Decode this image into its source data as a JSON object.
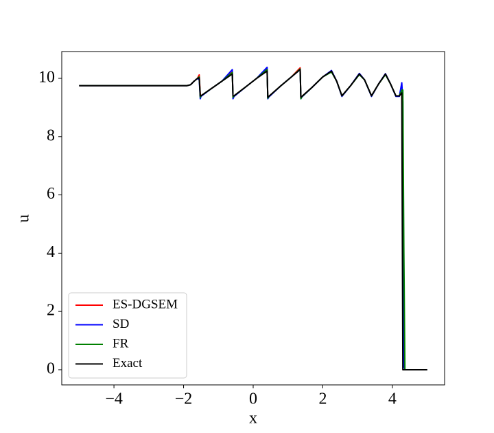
{
  "chart_data": {
    "type": "line",
    "xlabel": "x",
    "ylabel": "u",
    "x": [
      -5,
      -1.9,
      -1.8,
      -1.7,
      -1.6,
      -1.55,
      -1.52,
      -1.5,
      -1.2,
      -0.9,
      -0.6,
      -0.58,
      -0.55,
      -0.2,
      0.1,
      0.4,
      0.42,
      0.45,
      0.8,
      1.1,
      1.35,
      1.37,
      1.4,
      1.7,
      2.0,
      2.25,
      2.4,
      2.55,
      2.8,
      3.05,
      3.2,
      3.4,
      3.6,
      3.8,
      3.95,
      4.1,
      4.2,
      4.27,
      4.3,
      4.33,
      4.36,
      5
    ],
    "series": [
      {
        "name": "ES-DGSEM",
        "color": "#ff0000",
        "values": [
          9.75,
          9.75,
          9.78,
          9.9,
          10.0,
          10.12,
          9.45,
          9.4,
          9.65,
          9.9,
          10.22,
          9.38,
          9.4,
          9.72,
          10.0,
          10.32,
          9.33,
          9.38,
          9.75,
          10.05,
          10.36,
          9.32,
          9.38,
          9.7,
          10.05,
          10.25,
          9.9,
          9.4,
          9.75,
          10.15,
          9.95,
          9.4,
          9.8,
          10.15,
          9.8,
          9.4,
          9.4,
          9.55,
          7.8,
          0.3,
          0,
          0
        ]
      },
      {
        "name": "SD",
        "color": "#0000ff",
        "values": [
          9.75,
          9.75,
          9.78,
          9.9,
          10.0,
          9.95,
          9.3,
          9.38,
          9.65,
          9.9,
          10.3,
          9.3,
          9.38,
          9.72,
          10.0,
          10.38,
          9.3,
          9.36,
          9.75,
          10.05,
          10.3,
          9.3,
          9.36,
          9.7,
          10.05,
          10.27,
          9.9,
          9.38,
          9.75,
          10.17,
          9.95,
          9.38,
          9.8,
          10.16,
          9.8,
          9.38,
          9.38,
          9.85,
          9.2,
          0.1,
          0,
          0
        ]
      },
      {
        "name": "FR",
        "color": "#008000",
        "values": [
          9.75,
          9.75,
          9.78,
          9.9,
          10.0,
          10.05,
          9.35,
          9.4,
          9.65,
          9.9,
          10.2,
          9.35,
          9.4,
          9.72,
          10.0,
          10.3,
          9.32,
          9.38,
          9.75,
          10.05,
          10.32,
          9.3,
          9.37,
          9.7,
          10.05,
          10.22,
          9.9,
          9.4,
          9.75,
          10.13,
          9.95,
          9.4,
          9.8,
          10.13,
          9.8,
          9.4,
          9.4,
          9.6,
          9.6,
          4.0,
          0,
          0
        ]
      },
      {
        "name": "Exact",
        "color": "#000000",
        "values": [
          9.75,
          9.75,
          9.78,
          9.9,
          10.0,
          10.02,
          9.4,
          9.4,
          9.65,
          9.9,
          10.15,
          9.4,
          9.4,
          9.72,
          10.0,
          10.25,
          9.35,
          9.38,
          9.75,
          10.05,
          10.3,
          9.35,
          9.38,
          9.7,
          10.05,
          10.25,
          9.9,
          9.4,
          9.75,
          10.15,
          9.95,
          9.4,
          9.8,
          10.15,
          9.8,
          9.4,
          9.4,
          9.5,
          0,
          0,
          0,
          0
        ]
      }
    ],
    "xlim": [
      -5.5,
      5.5
    ],
    "ylim": [
      -0.52,
      10.92
    ],
    "xticks": [
      {
        "value": -4,
        "label": "−4"
      },
      {
        "value": -2,
        "label": "−2"
      },
      0,
      2,
      4
    ],
    "yticks": [
      0,
      2,
      4,
      6,
      8,
      10
    ],
    "grid": false,
    "legend": "lower left"
  }
}
